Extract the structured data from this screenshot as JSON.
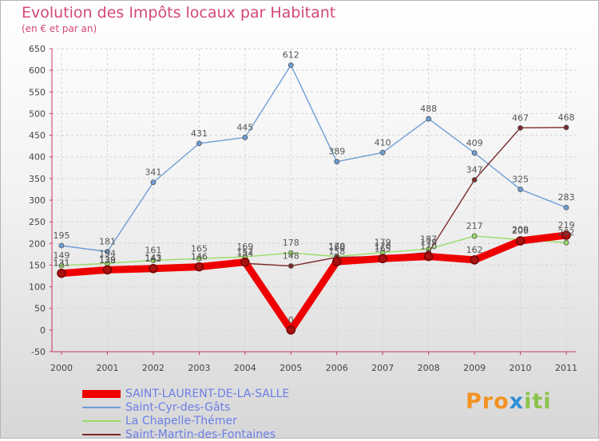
{
  "title": "Evolution des Impôts locaux par Habitant",
  "subtitle": "(en € et par an)",
  "logo": {
    "text": "Proxiti",
    "part1": "Pro",
    "part2": "x",
    "part3": "iti"
  },
  "chart_data": {
    "type": "line",
    "title": "Evolution des Impôts locaux par Habitant",
    "subtitle": "(en € et par an)",
    "xlabel": "",
    "ylabel": "",
    "ylim": [
      -50,
      650
    ],
    "ystep": 50,
    "grid": true,
    "legend_position": "bottom-left",
    "categories": [
      "2000",
      "2001",
      "2002",
      "2003",
      "2004",
      "2005",
      "2006",
      "2007",
      "2008",
      "2009",
      "2010",
      "2011"
    ],
    "series": [
      {
        "name": "SAINT-LAURENT-DE-LA-SALLE",
        "color": "#ee0000",
        "width": "thick",
        "values": [
          131,
          139,
          142,
          146,
          157,
          0,
          158,
          165,
          170,
          162,
          206,
          219
        ]
      },
      {
        "name": "Saint-Cyr-des-Gâts",
        "color": "#6d9ed6",
        "width": "thin",
        "values": [
          195,
          181,
          341,
          431,
          445,
          612,
          389,
          410,
          488,
          409,
          325,
          283
        ]
      },
      {
        "name": "La Chapelle-Thémer",
        "color": "#99dd66",
        "width": "thin",
        "values": [
          149,
          154,
          161,
          165,
          169,
          178,
          170,
          179,
          187,
          217,
          209,
          202
        ]
      },
      {
        "name": "Saint-Martin-des-Fontaines",
        "color": "#7a2a2a",
        "width": "thin",
        "values": [
          131,
          138,
          143,
          146,
          154,
          148,
          168,
          170,
          179,
          347,
          467,
          468
        ]
      }
    ]
  }
}
